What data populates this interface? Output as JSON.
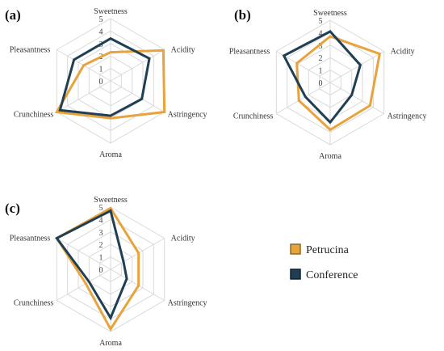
{
  "chart_data": [
    {
      "type": "radar",
      "panel": "(a)",
      "axes": [
        "Sweetness",
        "Acidity",
        "Astringency",
        "Aroma",
        "Crunchiness",
        "Pleasantness"
      ],
      "ticks": [
        "0",
        "1",
        "2",
        "3",
        "4",
        "5"
      ],
      "range": [
        0,
        5
      ],
      "series": [
        {
          "name": "Petrucina",
          "values": [
            2.3,
            4.9,
            5.0,
            3.0,
            5.0,
            2.5
          ]
        },
        {
          "name": "Conference",
          "values": [
            3.4,
            3.6,
            2.9,
            2.8,
            4.7,
            3.4
          ]
        }
      ]
    },
    {
      "type": "radar",
      "panel": "(b)",
      "axes": [
        "Sweetness",
        "Acidity",
        "Astringency",
        "Aroma",
        "Crunchiness",
        "Pleasantness"
      ],
      "ticks": [
        "0",
        "1",
        "2",
        "3",
        "4",
        "5"
      ],
      "range": [
        0,
        5
      ],
      "series": [
        {
          "name": "Petrucina",
          "values": [
            3.7,
            4.6,
            3.7,
            3.8,
            2.9,
            3.1
          ]
        },
        {
          "name": "Conference",
          "values": [
            4.1,
            2.8,
            2.0,
            3.2,
            2.3,
            4.3
          ]
        }
      ]
    },
    {
      "type": "radar",
      "panel": "(c)",
      "axes": [
        "Sweetness",
        "Acidity",
        "Astringency",
        "Aroma",
        "Crunchiness",
        "Pleasantness"
      ],
      "ticks": [
        "0",
        "1",
        "2",
        "3",
        "4",
        "5"
      ],
      "range": [
        0,
        5
      ],
      "series": [
        {
          "name": "Petrucina",
          "values": [
            4.9,
            2.6,
            2.6,
            4.8,
            2.3,
            5.0
          ]
        },
        {
          "name": "Conference",
          "values": [
            4.7,
            1.2,
            1.5,
            3.9,
            2.0,
            5.0
          ]
        }
      ]
    }
  ],
  "legend": [
    {
      "name": "Petrucina",
      "color": "#e8a33d"
    },
    {
      "name": "Conference",
      "color": "#1f3f55"
    }
  ],
  "colors": {
    "Petrucina": "#e8a33d",
    "Conference": "#1f3f55"
  }
}
